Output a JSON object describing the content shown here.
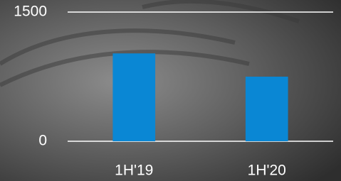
{
  "chart_data": {
    "type": "bar",
    "categories": [
      "1H'19",
      "1H'20"
    ],
    "values": [
      1020,
      750
    ],
    "color": "#0a87d4",
    "ylim": [
      0,
      1500
    ],
    "yticks": [
      0,
      1500
    ],
    "grid": true
  }
}
